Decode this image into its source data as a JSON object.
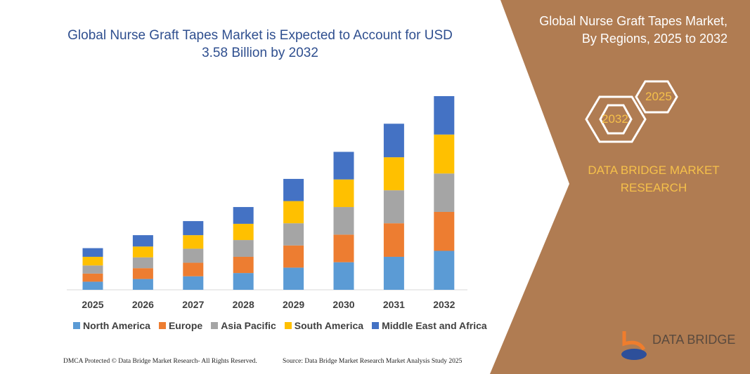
{
  "header": {
    "title": "Global Nurse Graft Tapes Market is Expected to Account for USD 3.58 Billion by 2032"
  },
  "side": {
    "title_line1": "Global Nurse Graft Tapes Market,",
    "title_line2": "By Regions, 2025 to 2032",
    "hex_a": "2025",
    "hex_b": "2032",
    "brand_line1": "DATA BRIDGE MARKET",
    "brand_line2": "RESEARCH",
    "logo_text": "DATA BRIDGE"
  },
  "footer": {
    "left": "DMCA Protected © Data Bridge Market Research- All Rights Reserved.",
    "right": "Source: Data Bridge Market Research  Market Analysis Study 2025"
  },
  "colors": {
    "panel": "#b07c52",
    "title": "#2f4f8f",
    "accent": "#f5c04a"
  },
  "chart_data": {
    "type": "bar",
    "stacked": true,
    "grid": false,
    "legend": "bottom",
    "categories": [
      "2025",
      "2026",
      "2027",
      "2028",
      "2029",
      "2030",
      "2031",
      "2032"
    ],
    "series": [
      {
        "name": "North America",
        "color": "#5b9bd5",
        "values": [
          0.15,
          0.2,
          0.25,
          0.31,
          0.41,
          0.51,
          0.61,
          0.72
        ]
      },
      {
        "name": "Europe",
        "color": "#ed7d31",
        "values": [
          0.15,
          0.2,
          0.25,
          0.3,
          0.41,
          0.51,
          0.62,
          0.72
        ]
      },
      {
        "name": "Asia Pacific",
        "color": "#a5a5a5",
        "values": [
          0.15,
          0.2,
          0.26,
          0.31,
          0.41,
          0.51,
          0.61,
          0.71
        ]
      },
      {
        "name": "South America",
        "color": "#ffc000",
        "values": [
          0.16,
          0.2,
          0.25,
          0.3,
          0.41,
          0.51,
          0.61,
          0.72
        ]
      },
      {
        "name": "Middle East and Africa",
        "color": "#4472c4",
        "values": [
          0.16,
          0.21,
          0.26,
          0.31,
          0.41,
          0.51,
          0.62,
          0.71
        ]
      }
    ]
  }
}
